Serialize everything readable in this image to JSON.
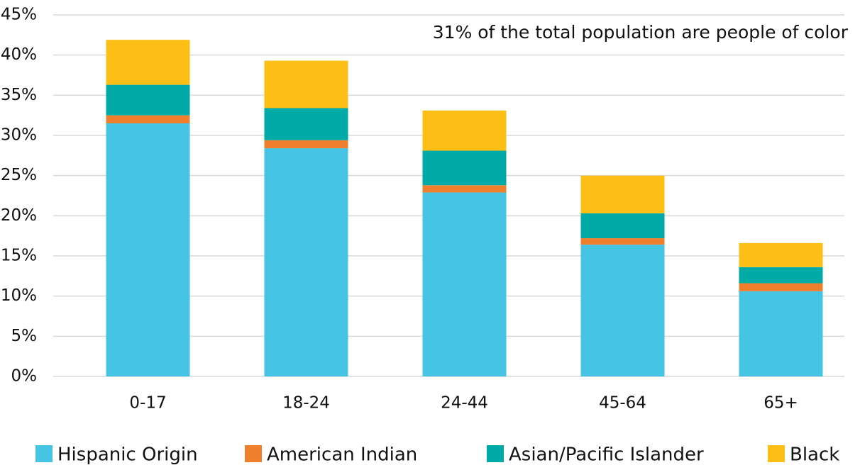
{
  "chart_data": {
    "type": "stacked_bar",
    "annotation": "31% of the total population are people of color",
    "categories": [
      "0-17",
      "18-24",
      "24-44",
      "45-64",
      "65+"
    ],
    "series": [
      {
        "name": "Hispanic Origin",
        "color": "#45c4e4",
        "values": [
          31.5,
          28.4,
          22.9,
          16.4,
          10.6
        ]
      },
      {
        "name": "American Indian",
        "color": "#f07f2d",
        "values": [
          1.0,
          1.0,
          0.9,
          0.8,
          1.0
        ]
      },
      {
        "name": "Asian/Pacific Islander",
        "color": "#00aaa6",
        "values": [
          3.8,
          4.0,
          4.3,
          3.1,
          2.0
        ]
      },
      {
        "name": "Black",
        "color": "#fdbf15",
        "values": [
          5.6,
          5.9,
          5.0,
          4.7,
          3.0
        ]
      }
    ],
    "ylim": [
      0,
      45
    ],
    "yticks": [
      {
        "value": 0,
        "label": "0%"
      },
      {
        "value": 5,
        "label": "5%"
      },
      {
        "value": 10,
        "label": "10%"
      },
      {
        "value": 15,
        "label": "15%"
      },
      {
        "value": 20,
        "label": "20%"
      },
      {
        "value": 25,
        "label": "25%"
      },
      {
        "value": 30,
        "label": "30%"
      },
      {
        "value": 35,
        "label": "35%"
      },
      {
        "value": 40,
        "label": "40%"
      },
      {
        "value": 45,
        "label": "45%"
      }
    ],
    "grid": true,
    "legend": "bottom"
  }
}
